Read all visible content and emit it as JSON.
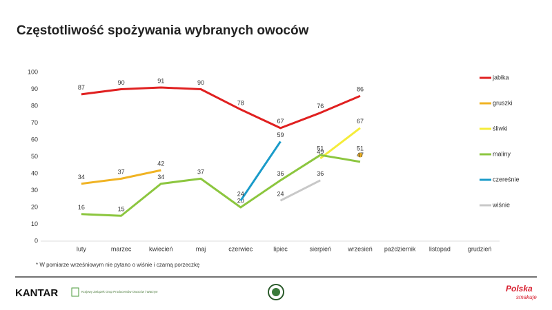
{
  "chart_data": {
    "type": "line",
    "title": "Częstotliwość spożywania wybranych owoców",
    "note": "* W pomiarze wrześniowym nie pytano o wiśnie i czarną porzeczkę",
    "categories": [
      "luty",
      "marzec",
      "kwiecień",
      "maj",
      "czerwiec",
      "lipiec",
      "sierpień",
      "wrzesień",
      "październik",
      "listopad",
      "grudzień"
    ],
    "series": [
      {
        "name": "jabłka",
        "color": "#e02020",
        "values": [
          87,
          90,
          91,
          90,
          78,
          67,
          76,
          86,
          null,
          null,
          null
        ]
      },
      {
        "name": "gruszki",
        "color": "#f0b323",
        "values": [
          34,
          37,
          42,
          null,
          null,
          null,
          null,
          51,
          null,
          null,
          null
        ]
      },
      {
        "name": "śliwki",
        "color": "#f5ec3a",
        "values": [
          null,
          null,
          null,
          null,
          null,
          null,
          49,
          67,
          null,
          null,
          null
        ]
      },
      {
        "name": "maliny",
        "color": "#8cc63f",
        "values": [
          16,
          15,
          34,
          37,
          20,
          36,
          51,
          47,
          null,
          null,
          null
        ]
      },
      {
        "name": "czereśnie",
        "color": "#1a9bc9",
        "values": [
          null,
          null,
          null,
          null,
          24,
          59,
          null,
          null,
          null,
          null,
          null
        ]
      },
      {
        "name": "wiśnie",
        "color": "#c8c8c8",
        "values": [
          null,
          null,
          null,
          null,
          null,
          24,
          36,
          null,
          null,
          null,
          null
        ]
      }
    ],
    "ylim": [
      0,
      100
    ],
    "yticks": [
      0,
      10,
      20,
      30,
      40,
      50,
      60,
      70,
      80,
      90,
      100
    ],
    "grid": false,
    "legend": "right"
  },
  "logos": {
    "left": "KANTAR",
    "partner": "Krajowy Związek Grup Producentów Owoców i Warzyw",
    "right": "Polska",
    "right_sub": "smakuje"
  }
}
